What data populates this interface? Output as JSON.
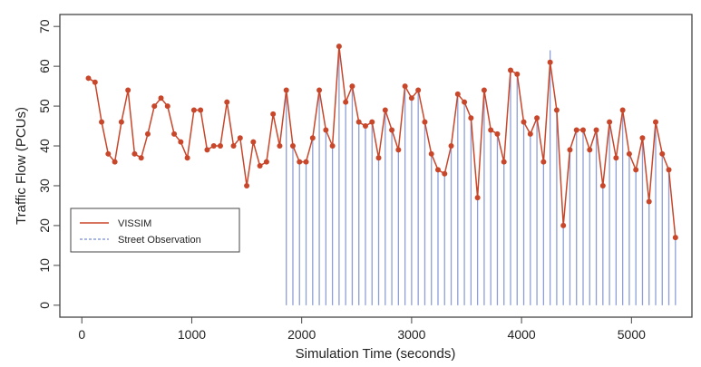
{
  "chart_data": {
    "type": "line",
    "xlabel": "Simulation Time (seconds)",
    "ylabel": "Traffic Flow (PCUs)",
    "xlim": [
      -200,
      5550
    ],
    "ylim": [
      -3,
      73
    ],
    "x_ticks": [
      0,
      1000,
      2000,
      3000,
      4000,
      5000
    ],
    "y_ticks": [
      0,
      10,
      20,
      30,
      40,
      50,
      60,
      70
    ],
    "legend_position": "bottom-left",
    "grid": false,
    "series": [
      {
        "name": "VISSIM",
        "style": "line-with-points",
        "color": "#c8462a",
        "x": [
          60,
          120,
          180,
          240,
          300,
          360,
          420,
          480,
          540,
          600,
          660,
          720,
          780,
          840,
          900,
          960,
          1020,
          1080,
          1140,
          1200,
          1260,
          1320,
          1380,
          1440,
          1500,
          1560,
          1620,
          1680,
          1740,
          1800,
          1860,
          1920,
          1980,
          2040,
          2100,
          2160,
          2220,
          2280,
          2340,
          2400,
          2460,
          2520,
          2580,
          2640,
          2700,
          2760,
          2820,
          2880,
          2940,
          3000,
          3060,
          3120,
          3180,
          3240,
          3300,
          3360,
          3420,
          3480,
          3540,
          3600,
          3660,
          3720,
          3780,
          3840,
          3900,
          3960,
          4020,
          4080,
          4140,
          4200,
          4260,
          4320,
          4380,
          4440,
          4500,
          4560,
          4620,
          4680,
          4740,
          4800,
          4860,
          4920,
          4980,
          5040,
          5100,
          5160,
          5220,
          5280,
          5340,
          5400
        ],
        "y": [
          57,
          56,
          46,
          38,
          36,
          46,
          54,
          38,
          37,
          43,
          50,
          52,
          50,
          43,
          41,
          37,
          49,
          49,
          39,
          40,
          40,
          51,
          40,
          42,
          30,
          41,
          35,
          36,
          48,
          40,
          54,
          40,
          36,
          36,
          42,
          54,
          44,
          40,
          65,
          51,
          55,
          46,
          45,
          46,
          37,
          49,
          44,
          39,
          55,
          52,
          54,
          46,
          38,
          34,
          33,
          40,
          53,
          51,
          47,
          27,
          54,
          44,
          43,
          36,
          59,
          58,
          46,
          43,
          47,
          36,
          61,
          49,
          20,
          39,
          44,
          44,
          39,
          44,
          30,
          46,
          37,
          49,
          38,
          34,
          42,
          26,
          46,
          38,
          34,
          17
        ]
      },
      {
        "name": "Street Observation",
        "style": "vertical-bars",
        "color": "#8d9fd6",
        "x": [
          1860,
          1920,
          1980,
          2040,
          2100,
          2160,
          2220,
          2280,
          2340,
          2400,
          2460,
          2520,
          2580,
          2640,
          2700,
          2760,
          2820,
          2880,
          2940,
          3000,
          3060,
          3120,
          3180,
          3240,
          3300,
          3360,
          3420,
          3480,
          3540,
          3600,
          3660,
          3720,
          3780,
          3840,
          3900,
          3960,
          4020,
          4080,
          4140,
          4200,
          4260,
          4320,
          4380,
          4440,
          4500,
          4560,
          4620,
          4680,
          4740,
          4800,
          4860,
          4920,
          4980,
          5040,
          5100,
          5160,
          5220,
          5280,
          5340,
          5400
        ],
        "y": [
          54,
          40,
          36,
          36,
          42,
          54,
          44,
          40,
          65,
          51,
          55,
          46,
          45,
          46,
          37,
          49,
          44,
          39,
          55,
          52,
          54,
          46,
          38,
          34,
          33,
          40,
          53,
          51,
          47,
          27,
          54,
          44,
          43,
          36,
          59,
          58,
          46,
          43,
          47,
          36,
          64,
          49,
          20,
          39,
          44,
          44,
          39,
          44,
          30,
          46,
          37,
          49,
          38,
          34,
          42,
          26,
          46,
          38,
          34,
          17
        ]
      }
    ]
  }
}
